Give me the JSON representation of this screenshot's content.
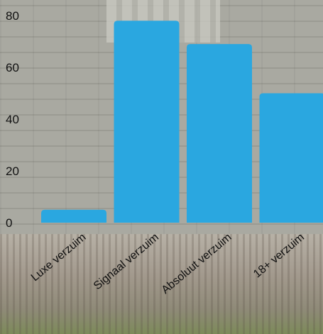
{
  "chart_data": {
    "type": "bar",
    "categories": [
      "Luxe verzuim",
      "Signaal verzuim",
      "Absoluut verzuim",
      "18+ verzuim"
    ],
    "values": [
      5,
      78,
      69,
      50
    ],
    "ylim": [
      0,
      80
    ],
    "yticks": [
      0,
      20,
      40,
      60,
      80
    ],
    "bar_color": "#2aa7e0",
    "grid": false,
    "title": "",
    "xlabel": "",
    "ylabel": ""
  }
}
